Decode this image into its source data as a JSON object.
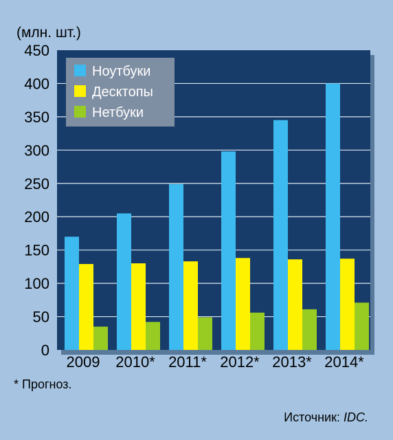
{
  "chart_data": {
    "type": "bar",
    "ylabel": "(млн. шт.)",
    "ylim": [
      0,
      450
    ],
    "yticks": [
      0,
      50,
      100,
      150,
      200,
      250,
      300,
      350,
      400,
      450
    ],
    "grid": true,
    "legend_placement": "top-left",
    "categories": [
      "2009",
      "2010*",
      "2011*",
      "2012*",
      "2013*",
      "2014*"
    ],
    "series": [
      {
        "name": "Ноутбуки",
        "color": "#3dbaf0",
        "values": [
          170,
          205,
          249,
          298,
          345,
          400
        ]
      },
      {
        "name": "Десктопы",
        "color": "#fff200",
        "values": [
          129,
          130,
          133,
          138,
          136,
          137
        ]
      },
      {
        "name": "Нетбуки",
        "color": "#99cc22",
        "values": [
          35,
          42,
          49,
          56,
          61,
          71
        ]
      }
    ]
  },
  "footnote": "* Прогноз.",
  "source": {
    "prefix": "Источник: ",
    "name": "IDC."
  },
  "colors": {
    "page_background": "#a6c4e2",
    "plot_background": "#183c6a",
    "grid": "#dbe6f2",
    "legend_background": "#7f8fa3"
  }
}
